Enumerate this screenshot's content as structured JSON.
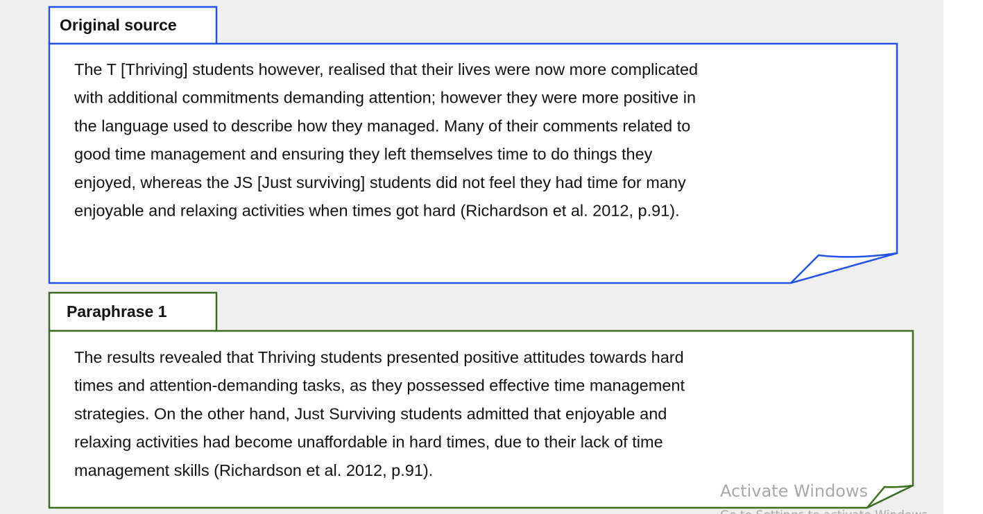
{
  "original": {
    "label": "Original source",
    "lines": [
      "The T [Thriving] students however, realised that their lives were now more complicated",
      "with additional commitments demanding attention; however they were more positive in",
      "the language used to describe how they managed. Many of their comments related to",
      "good time management and ensuring they left themselves time to do things they",
      "enjoyed, whereas the JS [Just surviving] students did not feel they had time for many",
      "enjoyable and relaxing activities when times got hard (Richardson et al. 2012, p.91)."
    ]
  },
  "paraphrase": {
    "label": "Paraphrase 1",
    "lines": [
      "The results revealed that Thriving students presented positive attitudes towards hard",
      "times and attention-demanding tasks, as they possessed effective time management",
      "strategies. On the other hand, Just Surviving students admitted that enjoyable and",
      "relaxing activities had become unaffordable in hard times, due to their lack of time",
      "management skills (Richardson et al. 2012, p.91)."
    ]
  },
  "watermark": {
    "title": "Activate Windows",
    "subtitle": "Go to Settings to activate Windows."
  }
}
